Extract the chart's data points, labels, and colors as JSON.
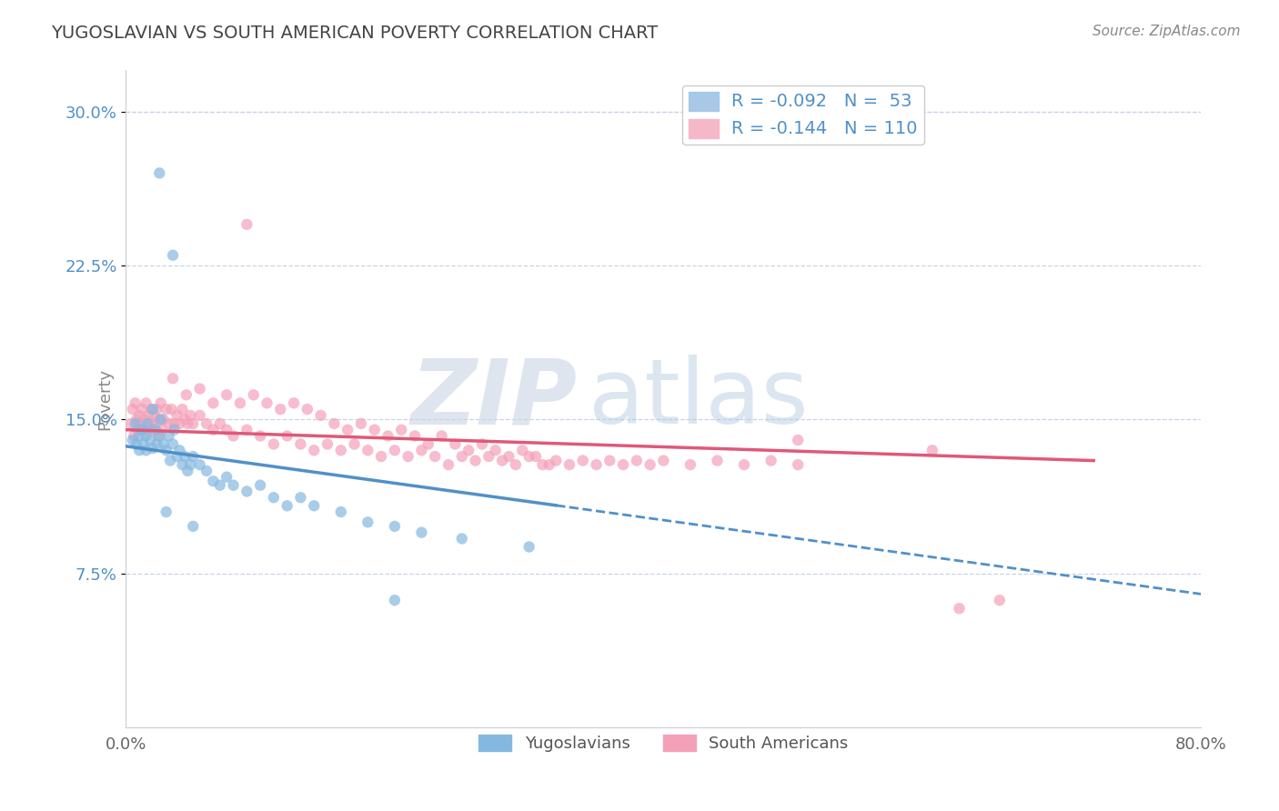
{
  "title": "YUGOSLAVIAN VS SOUTH AMERICAN POVERTY CORRELATION CHART",
  "source_text": "Source: ZipAtlas.com",
  "ylabel": "Poverty",
  "xlim": [
    0.0,
    0.8
  ],
  "ylim": [
    0.0,
    0.32
  ],
  "yticks": [
    0.075,
    0.15,
    0.225,
    0.3
  ],
  "ytick_labels": [
    "7.5%",
    "15.0%",
    "22.5%",
    "30.0%"
  ],
  "xtick_labels": [
    "0.0%",
    "80.0%"
  ],
  "watermark_zip": "ZIP",
  "watermark_atlas": "atlas",
  "blue_scatter_color": "#85b8e0",
  "pink_scatter_color": "#f4a0b8",
  "blue_line_color": "#5090c8",
  "pink_line_color": "#e05878",
  "grid_color": "#c8d4e8",
  "background_color": "#ffffff",
  "title_color": "#444444",
  "source_color": "#888888",
  "tick_color_y": "#5090c8",
  "tick_color_x": "#666666",
  "legend_blue_color": "#a8c8e8",
  "legend_pink_color": "#f4b8c8",
  "legend_text_color": "#5090c8",
  "blue_line": {
    "x0": 0.0,
    "y0": 0.137,
    "x1": 0.8,
    "y1": 0.065
  },
  "pink_line": {
    "x0": 0.0,
    "y0": 0.145,
    "x1": 0.72,
    "y1": 0.13
  },
  "blue_points": [
    [
      0.005,
      0.14
    ],
    [
      0.007,
      0.148
    ],
    [
      0.008,
      0.138
    ],
    [
      0.01,
      0.142
    ],
    [
      0.01,
      0.135
    ],
    [
      0.012,
      0.145
    ],
    [
      0.013,
      0.138
    ],
    [
      0.015,
      0.142
    ],
    [
      0.015,
      0.135
    ],
    [
      0.016,
      0.148
    ],
    [
      0.018,
      0.14
    ],
    [
      0.02,
      0.136
    ],
    [
      0.02,
      0.155
    ],
    [
      0.022,
      0.145
    ],
    [
      0.023,
      0.138
    ],
    [
      0.025,
      0.142
    ],
    [
      0.026,
      0.15
    ],
    [
      0.028,
      0.138
    ],
    [
      0.03,
      0.135
    ],
    [
      0.032,
      0.142
    ],
    [
      0.033,
      0.13
    ],
    [
      0.035,
      0.138
    ],
    [
      0.036,
      0.145
    ],
    [
      0.038,
      0.132
    ],
    [
      0.04,
      0.135
    ],
    [
      0.042,
      0.128
    ],
    [
      0.044,
      0.132
    ],
    [
      0.046,
      0.125
    ],
    [
      0.048,
      0.128
    ],
    [
      0.05,
      0.132
    ],
    [
      0.055,
      0.128
    ],
    [
      0.06,
      0.125
    ],
    [
      0.065,
      0.12
    ],
    [
      0.07,
      0.118
    ],
    [
      0.075,
      0.122
    ],
    [
      0.08,
      0.118
    ],
    [
      0.09,
      0.115
    ],
    [
      0.1,
      0.118
    ],
    [
      0.11,
      0.112
    ],
    [
      0.12,
      0.108
    ],
    [
      0.13,
      0.112
    ],
    [
      0.14,
      0.108
    ],
    [
      0.16,
      0.105
    ],
    [
      0.18,
      0.1
    ],
    [
      0.2,
      0.098
    ],
    [
      0.22,
      0.095
    ],
    [
      0.25,
      0.092
    ],
    [
      0.3,
      0.088
    ],
    [
      0.03,
      0.105
    ],
    [
      0.05,
      0.098
    ],
    [
      0.2,
      0.062
    ],
    [
      0.035,
      0.23
    ],
    [
      0.025,
      0.27
    ]
  ],
  "pink_points": [
    [
      0.004,
      0.148
    ],
    [
      0.005,
      0.155
    ],
    [
      0.006,
      0.142
    ],
    [
      0.007,
      0.158
    ],
    [
      0.008,
      0.15
    ],
    [
      0.009,
      0.145
    ],
    [
      0.01,
      0.152
    ],
    [
      0.011,
      0.148
    ],
    [
      0.012,
      0.155
    ],
    [
      0.013,
      0.145
    ],
    [
      0.014,
      0.15
    ],
    [
      0.015,
      0.158
    ],
    [
      0.016,
      0.145
    ],
    [
      0.017,
      0.152
    ],
    [
      0.018,
      0.148
    ],
    [
      0.019,
      0.155
    ],
    [
      0.02,
      0.145
    ],
    [
      0.021,
      0.152
    ],
    [
      0.022,
      0.148
    ],
    [
      0.023,
      0.155
    ],
    [
      0.024,
      0.142
    ],
    [
      0.025,
      0.15
    ],
    [
      0.026,
      0.158
    ],
    [
      0.027,
      0.145
    ],
    [
      0.028,
      0.15
    ],
    [
      0.03,
      0.155
    ],
    [
      0.032,
      0.148
    ],
    [
      0.034,
      0.155
    ],
    [
      0.036,
      0.148
    ],
    [
      0.038,
      0.152
    ],
    [
      0.04,
      0.148
    ],
    [
      0.042,
      0.155
    ],
    [
      0.044,
      0.15
    ],
    [
      0.046,
      0.148
    ],
    [
      0.048,
      0.152
    ],
    [
      0.05,
      0.148
    ],
    [
      0.055,
      0.152
    ],
    [
      0.06,
      0.148
    ],
    [
      0.065,
      0.145
    ],
    [
      0.07,
      0.148
    ],
    [
      0.075,
      0.145
    ],
    [
      0.08,
      0.142
    ],
    [
      0.09,
      0.145
    ],
    [
      0.1,
      0.142
    ],
    [
      0.11,
      0.138
    ],
    [
      0.12,
      0.142
    ],
    [
      0.13,
      0.138
    ],
    [
      0.14,
      0.135
    ],
    [
      0.15,
      0.138
    ],
    [
      0.16,
      0.135
    ],
    [
      0.17,
      0.138
    ],
    [
      0.18,
      0.135
    ],
    [
      0.19,
      0.132
    ],
    [
      0.2,
      0.135
    ],
    [
      0.21,
      0.132
    ],
    [
      0.22,
      0.135
    ],
    [
      0.23,
      0.132
    ],
    [
      0.24,
      0.128
    ],
    [
      0.25,
      0.132
    ],
    [
      0.26,
      0.13
    ],
    [
      0.27,
      0.132
    ],
    [
      0.28,
      0.13
    ],
    [
      0.29,
      0.128
    ],
    [
      0.3,
      0.132
    ],
    [
      0.31,
      0.128
    ],
    [
      0.32,
      0.13
    ],
    [
      0.33,
      0.128
    ],
    [
      0.34,
      0.13
    ],
    [
      0.35,
      0.128
    ],
    [
      0.36,
      0.13
    ],
    [
      0.37,
      0.128
    ],
    [
      0.38,
      0.13
    ],
    [
      0.39,
      0.128
    ],
    [
      0.4,
      0.13
    ],
    [
      0.42,
      0.128
    ],
    [
      0.44,
      0.13
    ],
    [
      0.46,
      0.128
    ],
    [
      0.48,
      0.13
    ],
    [
      0.5,
      0.128
    ],
    [
      0.09,
      0.245
    ],
    [
      0.5,
      0.14
    ],
    [
      0.6,
      0.135
    ],
    [
      0.62,
      0.058
    ],
    [
      0.65,
      0.062
    ],
    [
      0.035,
      0.17
    ],
    [
      0.045,
      0.162
    ],
    [
      0.055,
      0.165
    ],
    [
      0.065,
      0.158
    ],
    [
      0.075,
      0.162
    ],
    [
      0.085,
      0.158
    ],
    [
      0.095,
      0.162
    ],
    [
      0.105,
      0.158
    ],
    [
      0.115,
      0.155
    ],
    [
      0.125,
      0.158
    ],
    [
      0.135,
      0.155
    ],
    [
      0.145,
      0.152
    ],
    [
      0.155,
      0.148
    ],
    [
      0.165,
      0.145
    ],
    [
      0.175,
      0.148
    ],
    [
      0.185,
      0.145
    ],
    [
      0.195,
      0.142
    ],
    [
      0.205,
      0.145
    ],
    [
      0.215,
      0.142
    ],
    [
      0.225,
      0.138
    ],
    [
      0.235,
      0.142
    ],
    [
      0.245,
      0.138
    ],
    [
      0.255,
      0.135
    ],
    [
      0.265,
      0.138
    ],
    [
      0.275,
      0.135
    ],
    [
      0.285,
      0.132
    ],
    [
      0.295,
      0.135
    ],
    [
      0.305,
      0.132
    ],
    [
      0.315,
      0.128
    ]
  ]
}
